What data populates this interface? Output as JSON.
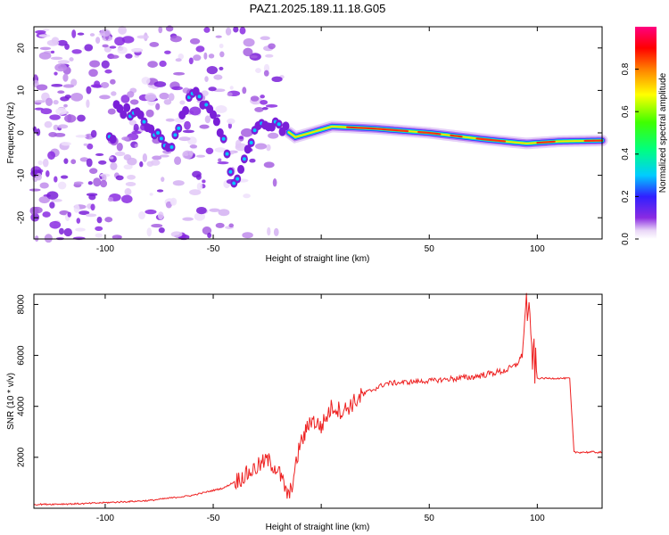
{
  "title": "PAZ1.2025.189.11.18.G05",
  "chart_data": [
    {
      "type": "heatmap",
      "xlabel": "Height of straight line (km)",
      "ylabel": "Frequency (Hz)",
      "xlim": [
        -133,
        130
      ],
      "ylim": [
        -25,
        25
      ],
      "xticks": [
        -100,
        -50,
        0,
        50,
        100
      ],
      "xtick_labels": [
        "-100",
        "-50",
        "",
        "50",
        "100"
      ],
      "yticks": [
        -20,
        -10,
        0,
        10,
        20
      ],
      "ytick_labels": [
        "-20",
        "-10",
        "0",
        "10",
        "20"
      ],
      "colorbar": {
        "label": "Normalized spectral amplitude",
        "range": [
          0,
          1
        ],
        "ticks": [
          0,
          0.2,
          0.4,
          0.6,
          0.8
        ],
        "tick_labels": [
          "0.0",
          "0.2",
          "0.4",
          "0.6",
          "0.8"
        ]
      },
      "ridge": [
        {
          "x": -95,
          "y": 6
        },
        {
          "x": -85,
          "y": 4
        },
        {
          "x": -75,
          "y": -1
        },
        {
          "x": -70,
          "y": -4
        },
        {
          "x": -60,
          "y": 10
        },
        {
          "x": -50,
          "y": 4
        },
        {
          "x": -45,
          "y": -2
        },
        {
          "x": -40,
          "y": -13
        },
        {
          "x": -30,
          "y": 2
        },
        {
          "x": -20,
          "y": 2
        },
        {
          "x": -12,
          "y": -1
        },
        {
          "x": -5,
          "y": 0
        },
        {
          "x": 5,
          "y": 1.5
        },
        {
          "x": 25,
          "y": 1
        },
        {
          "x": 50,
          "y": 0
        },
        {
          "x": 75,
          "y": -1.5
        },
        {
          "x": 95,
          "y": -2.5
        },
        {
          "x": 110,
          "y": -2
        },
        {
          "x": 130,
          "y": -1.8
        }
      ]
    },
    {
      "type": "line",
      "xlabel": "Height of straight line (km)",
      "ylabel": "SNR (10 * v/v)",
      "xlim": [
        -133,
        130
      ],
      "ylim": [
        0,
        8400
      ],
      "xticks": [
        -100,
        -50,
        0,
        50,
        100
      ],
      "xtick_labels": [
        "-100",
        "-50",
        "",
        "50",
        "100"
      ],
      "yticks": [
        2000,
        4000,
        6000,
        8000
      ],
      "ytick_labels": [
        "2000",
        "4000",
        "6000",
        "8000"
      ],
      "series": [
        {
          "color": "#ee2222",
          "x": [
            -133,
            -110,
            -80,
            -60,
            -45,
            -35,
            -25,
            -20,
            -15,
            -12,
            -10,
            -8,
            -5,
            0,
            5,
            10,
            20,
            30,
            50,
            70,
            85,
            90,
            93,
            95,
            97,
            100,
            110,
            115,
            117,
            130
          ],
          "y": [
            150,
            180,
            300,
            500,
            800,
            1300,
            1900,
            1500,
            400,
            1500,
            2500,
            2800,
            3500,
            3200,
            4000,
            3800,
            4500,
            4900,
            5000,
            5150,
            5400,
            5600,
            6000,
            8300,
            6500,
            5100,
            5100,
            5100,
            2200,
            2200
          ]
        }
      ]
    }
  ]
}
